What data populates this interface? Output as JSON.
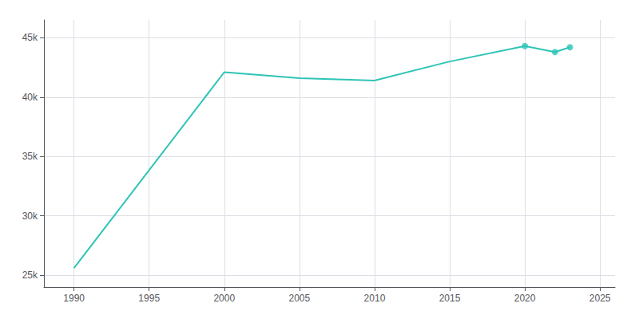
{
  "chart_data": {
    "type": "line",
    "series": [
      {
        "type": "line",
        "color": "#2EC4B6",
        "x": [
          1990,
          2000,
          2005,
          2010,
          2015,
          2020,
          2022,
          2023
        ],
        "values": [
          25600,
          42100,
          41600,
          41400,
          43000,
          44300,
          43800,
          44200
        ]
      },
      {
        "type": "scatter",
        "color": "#2EC4B6",
        "marker": "circle",
        "x": [
          2020,
          2022,
          2023
        ],
        "values": [
          44300,
          43800,
          44200
        ]
      }
    ],
    "xlim": [
      1988,
      2026
    ],
    "xticks": [
      1990,
      1995,
      2000,
      2005,
      2010,
      2015,
      2020,
      2025
    ],
    "ylim": [
      24000,
      46500
    ],
    "yticks": [
      {
        "value": 25000,
        "label": "25k"
      },
      {
        "value": 30000,
        "label": "30k"
      },
      {
        "value": 35000,
        "label": "35k"
      },
      {
        "value": 40000,
        "label": "40k"
      },
      {
        "value": 45000,
        "label": "45k"
      }
    ],
    "grid": true
  }
}
